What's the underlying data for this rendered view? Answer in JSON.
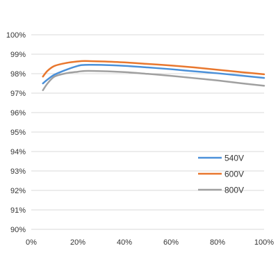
{
  "chart_data": {
    "type": "line",
    "title": "",
    "xlabel": "",
    "ylabel": "",
    "x_tick_labels": [
      "0%",
      "20%",
      "40%",
      "60%",
      "80%",
      "100%"
    ],
    "y_tick_labels": [
      "90%",
      "91%",
      "92%",
      "93%",
      "94%",
      "95%",
      "96%",
      "97%",
      "98%",
      "99%",
      "100%"
    ],
    "xlim": [
      0,
      100
    ],
    "ylim": [
      90,
      100
    ],
    "grid": "horizontal",
    "legend_position": "right-lower",
    "series": [
      {
        "name": "540V",
        "color": "#4a90d9",
        "x": [
          5,
          7,
          10,
          15,
          20,
          23,
          30,
          40,
          50,
          60,
          70,
          80,
          90,
          100
        ],
        "y": [
          97.5,
          97.7,
          97.95,
          98.2,
          98.4,
          98.45,
          98.45,
          98.4,
          98.32,
          98.23,
          98.12,
          98.02,
          97.9,
          97.78
        ]
      },
      {
        "name": "600V",
        "color": "#e8772e",
        "x": [
          5,
          7,
          10,
          15,
          20,
          23,
          30,
          40,
          50,
          60,
          70,
          80,
          90,
          100
        ],
        "y": [
          97.85,
          98.15,
          98.4,
          98.55,
          98.63,
          98.65,
          98.63,
          98.58,
          98.5,
          98.42,
          98.32,
          98.2,
          98.08,
          97.97
        ]
      },
      {
        "name": "800V",
        "color": "#a0a0a0",
        "x": [
          5,
          7,
          10,
          15,
          20,
          23,
          30,
          40,
          50,
          60,
          70,
          80,
          90,
          100
        ],
        "y": [
          97.15,
          97.5,
          97.85,
          98.02,
          98.1,
          98.14,
          98.13,
          98.08,
          97.99,
          97.89,
          97.77,
          97.65,
          97.51,
          97.38
        ]
      }
    ]
  }
}
